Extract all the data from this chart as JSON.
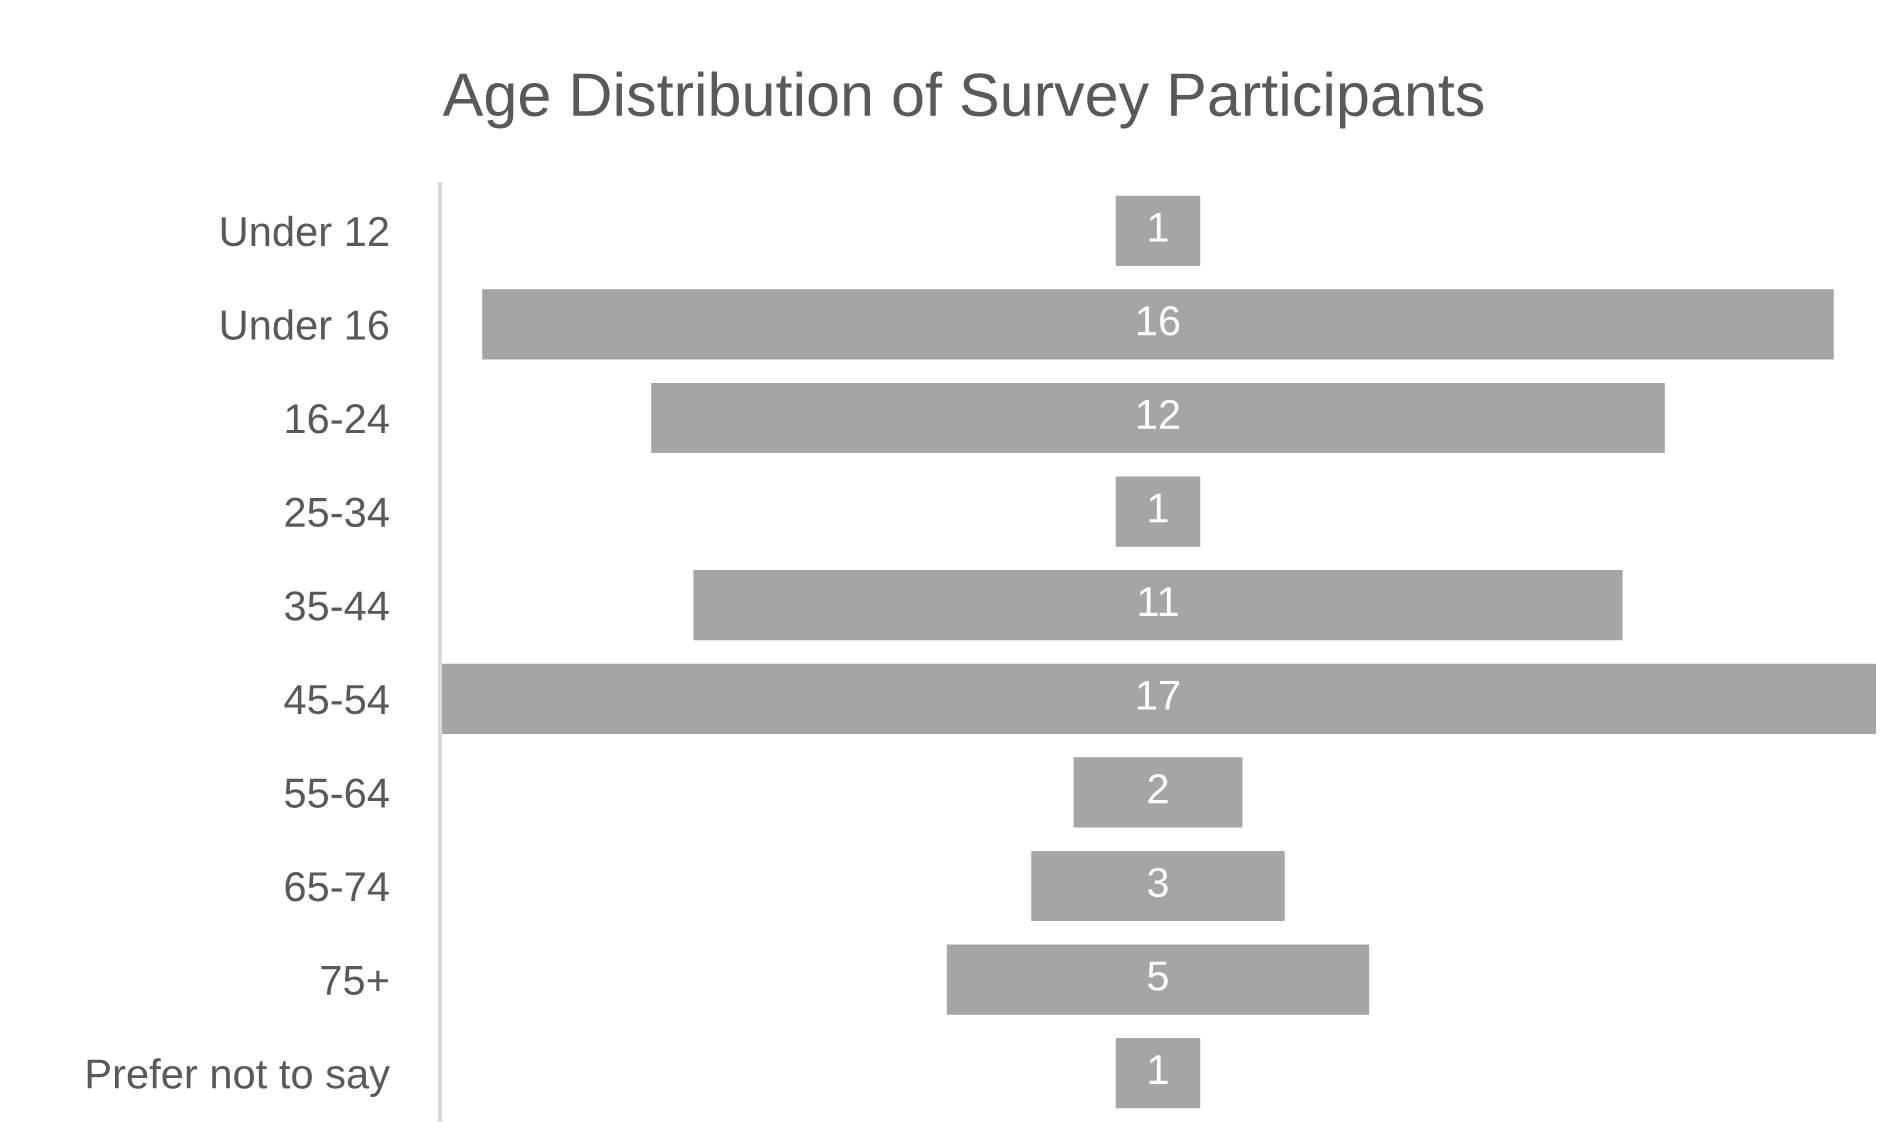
{
  "chart_data": {
    "type": "other",
    "title": "Age Distribution of Survey Participants",
    "categories": [
      "Under 12",
      "Under 16",
      "16-24",
      "25-34",
      "35-44",
      "45-54",
      "55-64",
      "65-74",
      "75+",
      "Prefer not to say"
    ],
    "values": [
      1,
      16,
      12,
      1,
      11,
      17,
      2,
      3,
      5,
      1
    ],
    "color": "#a5a5a5",
    "data_labels": true
  }
}
